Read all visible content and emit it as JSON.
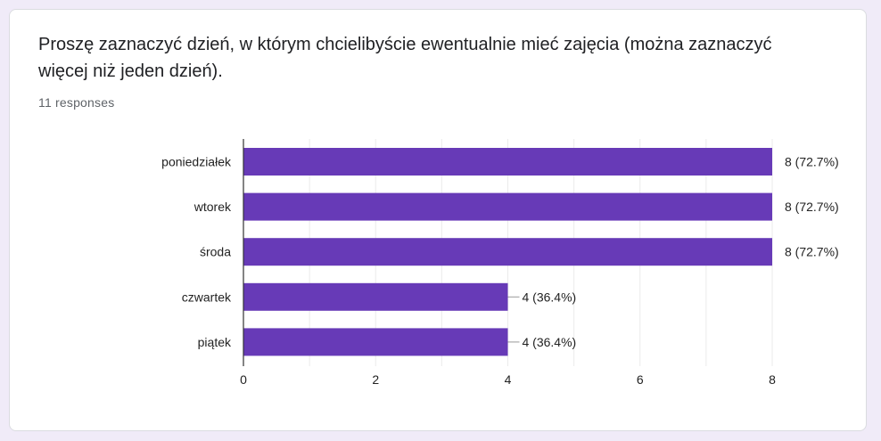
{
  "question": {
    "title": "Proszę zaznaczyć dzień, w którym chcielibyście ewentualnie mieć zajęcia (można zaznaczyć więcej niż jeden dzień).",
    "responses_text": "11 responses"
  },
  "colors": {
    "bar": "#673ab7",
    "axis": "#333333",
    "grid": "#ebebeb"
  },
  "chart_data": {
    "type": "bar",
    "orientation": "horizontal",
    "categories": [
      "poniedziałek",
      "wtorek",
      "środa",
      "czwartek",
      "piątek"
    ],
    "values": [
      8,
      8,
      8,
      4,
      4
    ],
    "data_labels": [
      "8 (72.7%)",
      "8 (72.7%)",
      "8 (72.7%)",
      "4 (36.4%)",
      "4 (36.4%)"
    ],
    "x_ticks": [
      "0",
      "2",
      "4",
      "6",
      "8"
    ],
    "xlim": [
      0,
      8
    ],
    "grid": true,
    "legend": "none"
  }
}
